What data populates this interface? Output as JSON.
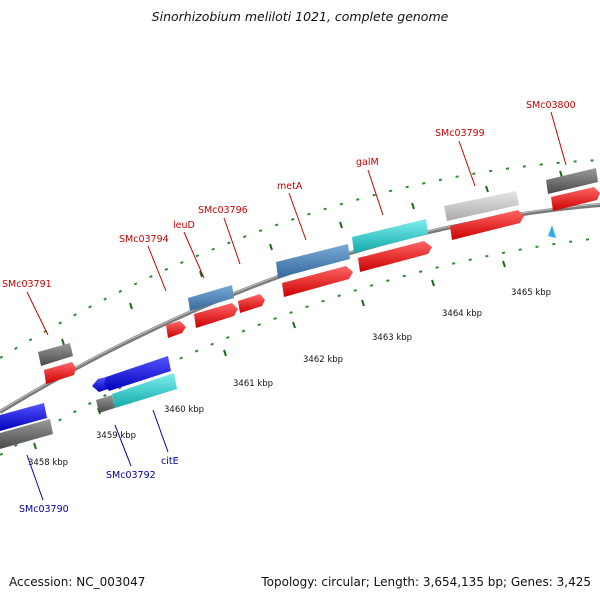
{
  "title": "Sinorhizobium meliloti 1021, complete genome",
  "footer": {
    "accession": "Accession: NC_003047",
    "summary": "Topology: circular; Length: 3,654,135 bp; Genes: 3,425"
  },
  "colors": {
    "backbone": "#8a8a8a",
    "tick_dots": "#2e8b2e",
    "label_forward": "#cc0000",
    "label_reverse": "#0000aa",
    "gene_gray": "#6e6e6e",
    "gene_light_gray": "#c8c8c8",
    "gene_red": "#ee1111",
    "gene_blue": "#1111dd",
    "gene_steel": "#4a7fb5",
    "gene_cyan": "#22cccc",
    "marker": "#33aaee"
  },
  "scale": {
    "unit": "kbp",
    "ticks": [
      {
        "label": "3458 kbp",
        "pos": 3458
      },
      {
        "label": "3459 kbp",
        "pos": 3459
      },
      {
        "label": "3460 kbp",
        "pos": 3460
      },
      {
        "label": "3461 kbp",
        "pos": 3461
      },
      {
        "label": "3462 kbp",
        "pos": 3462
      },
      {
        "label": "3463 kbp",
        "pos": 3463
      },
      {
        "label": "3464 kbp",
        "pos": 3464
      },
      {
        "label": "3465 kbp",
        "pos": 3465
      }
    ]
  },
  "gene_labels": [
    {
      "text": "SMc03791",
      "strand": "forward"
    },
    {
      "text": "SMc03794",
      "strand": "forward"
    },
    {
      "text": "leuD",
      "strand": "forward"
    },
    {
      "text": "SMc03796",
      "strand": "forward"
    },
    {
      "text": "metA",
      "strand": "forward"
    },
    {
      "text": "galM",
      "strand": "forward"
    },
    {
      "text": "SMc03799",
      "strand": "forward"
    },
    {
      "text": "SMc03800",
      "strand": "forward"
    },
    {
      "text": "SMc03790",
      "strand": "reverse"
    },
    {
      "text": "SMc03792",
      "strand": "reverse"
    },
    {
      "text": "citE",
      "strand": "reverse"
    }
  ]
}
